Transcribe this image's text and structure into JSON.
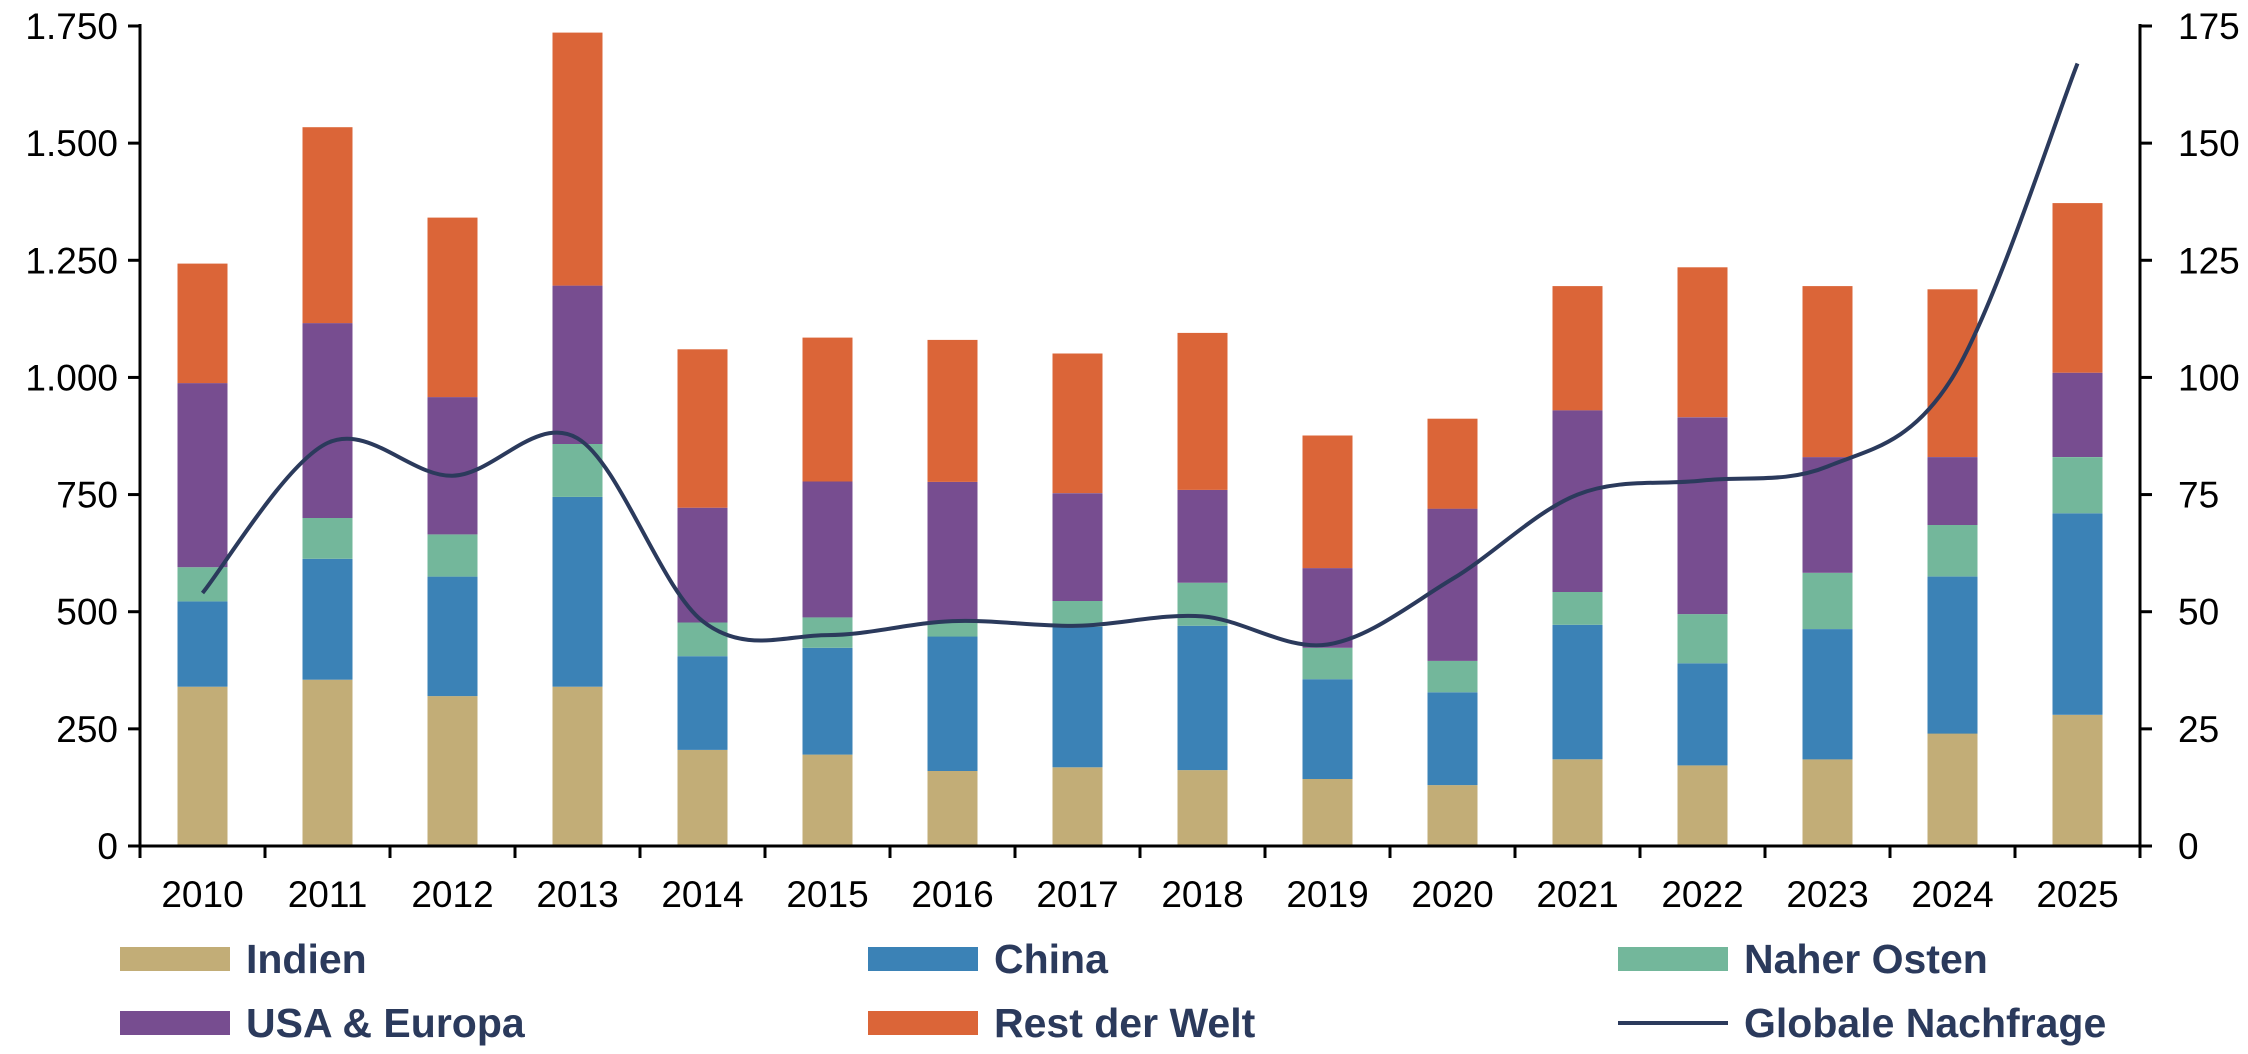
{
  "chart_data": {
    "type": "bar",
    "stacked": true,
    "categories": [
      "2010",
      "2011",
      "2012",
      "2013",
      "2014",
      "2015",
      "2016",
      "2017",
      "2018",
      "2019",
      "2020",
      "2021",
      "2022",
      "2023",
      "2024",
      "2025"
    ],
    "series": [
      {
        "name": "Indien",
        "color": "#c2ad77",
        "values": [
          340,
          355,
          320,
          340,
          205,
          195,
          160,
          168,
          162,
          143,
          130,
          185,
          172,
          185,
          240,
          280
        ]
      },
      {
        "name": "China",
        "color": "#3b82b6",
        "values": [
          182,
          258,
          255,
          405,
          200,
          228,
          287,
          300,
          308,
          213,
          198,
          287,
          218,
          278,
          335,
          430
        ]
      },
      {
        "name": "Naher Osten",
        "color": "#73b79b",
        "values": [
          73,
          87,
          90,
          113,
          72,
          65,
          30,
          55,
          92,
          67,
          67,
          70,
          105,
          120,
          110,
          120
        ]
      },
      {
        "name": "USA & Europa",
        "color": "#774d90",
        "values": [
          393,
          416,
          293,
          338,
          245,
          290,
          300,
          230,
          198,
          170,
          325,
          388,
          420,
          247,
          145,
          180
        ]
      },
      {
        "name": "Rest der Welt",
        "color": "#db6538",
        "values": [
          255,
          418,
          383,
          540,
          338,
          307,
          303,
          298,
          335,
          283,
          192,
          265,
          320,
          365,
          358,
          362
        ]
      }
    ],
    "line_series": {
      "name": "Globale Nachfrage",
      "color": "#2b3a5c",
      "axis": "right",
      "values": [
        54,
        86,
        79,
        87,
        48,
        45,
        48,
        47,
        49,
        43,
        57,
        75,
        78,
        81,
        100,
        167
      ]
    },
    "y_left": {
      "min": 0,
      "max": 1750,
      "ticks": [
        0,
        250,
        500,
        750,
        1000,
        1250,
        1500,
        1750
      ],
      "tick_labels": [
        "0",
        "250",
        "500",
        "750",
        "1.000",
        "1.250",
        "1.500",
        "1.750"
      ]
    },
    "y_right": {
      "min": 0,
      "max": 175,
      "ticks": [
        0,
        25,
        50,
        75,
        100,
        125,
        150,
        175
      ],
      "tick_labels": [
        "0",
        "25",
        "50",
        "75",
        "100",
        "125",
        "150",
        "175"
      ]
    },
    "grid": false,
    "legend_position": "bottom"
  }
}
